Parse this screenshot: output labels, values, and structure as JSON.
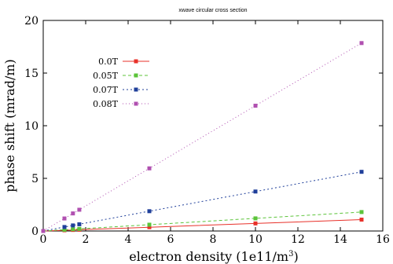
{
  "chart_data": {
    "type": "line",
    "title": "xwave circular cross section",
    "xlabel": "electron density (1e11/m",
    "xlabel_sup": "3",
    "xlabel_close": ")",
    "ylabel": "phase shift (mrad/m)",
    "xlim": [
      0,
      16
    ],
    "ylim": [
      0,
      20
    ],
    "xticks": [
      0,
      2,
      4,
      6,
      8,
      10,
      12,
      14,
      16
    ],
    "yticks": [
      0,
      5,
      10,
      15,
      20
    ],
    "grid": false,
    "legend_position": "top-left",
    "x": [
      0,
      1,
      1.4,
      1.7,
      5,
      10,
      15
    ],
    "series": [
      {
        "name": "0.0T",
        "values": [
          0,
          0.07,
          0.1,
          0.12,
          0.36,
          0.72,
          1.08
        ],
        "color": "#e8312a",
        "dash": ""
      },
      {
        "name": "0.05T",
        "values": [
          0,
          0.12,
          0.17,
          0.2,
          0.6,
          1.2,
          1.8
        ],
        "color": "#5cc43a",
        "dash": "4,3"
      },
      {
        "name": "0.07T",
        "values": [
          0,
          0.38,
          0.53,
          0.64,
          1.88,
          3.75,
          5.62
        ],
        "color": "#1f3f9a",
        "dash": "2,3"
      },
      {
        "name": "0.08T",
        "values": [
          0,
          1.19,
          1.67,
          2.02,
          5.95,
          11.9,
          17.85
        ],
        "color": "#b050b0",
        "dash": "1,3"
      }
    ]
  }
}
